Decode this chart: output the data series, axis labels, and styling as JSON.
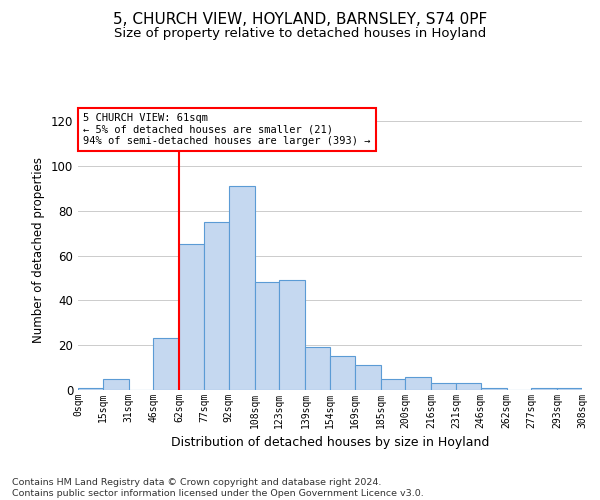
{
  "title_line1": "5, CHURCH VIEW, HOYLAND, BARNSLEY, S74 0PF",
  "title_line2": "Size of property relative to detached houses in Hoyland",
  "xlabel": "Distribution of detached houses by size in Hoyland",
  "ylabel": "Number of detached properties",
  "footnote": "Contains HM Land Registry data © Crown copyright and database right 2024.\nContains public sector information licensed under the Open Government Licence v3.0.",
  "bar_edges": [
    0,
    15,
    31,
    46,
    62,
    77,
    92,
    108,
    123,
    139,
    154,
    169,
    185,
    200,
    216,
    231,
    246,
    262,
    277,
    293,
    308
  ],
  "bar_heights": [
    1,
    5,
    0,
    23,
    65,
    75,
    91,
    48,
    49,
    19,
    15,
    11,
    5,
    6,
    3,
    3,
    1,
    0,
    1,
    1
  ],
  "bar_color": "#c5d8f0",
  "bar_edgecolor": "#5b9bd5",
  "tick_labels": [
    "0sqm",
    "15sqm",
    "31sqm",
    "46sqm",
    "62sqm",
    "77sqm",
    "92sqm",
    "108sqm",
    "123sqm",
    "139sqm",
    "154sqm",
    "169sqm",
    "185sqm",
    "200sqm",
    "216sqm",
    "231sqm",
    "246sqm",
    "262sqm",
    "277sqm",
    "293sqm",
    "308sqm"
  ],
  "ylim": [
    0,
    125
  ],
  "yticks": [
    0,
    20,
    40,
    60,
    80,
    100,
    120
  ],
  "vline_x": 62,
  "annotation_text": "5 CHURCH VIEW: 61sqm\n← 5% of detached houses are smaller (21)\n94% of semi-detached houses are larger (393) →",
  "grid_color": "#cccccc",
  "background_color": "#ffffff",
  "title1_fontsize": 11,
  "title2_fontsize": 9.5,
  "footnote_fontsize": 6.8
}
